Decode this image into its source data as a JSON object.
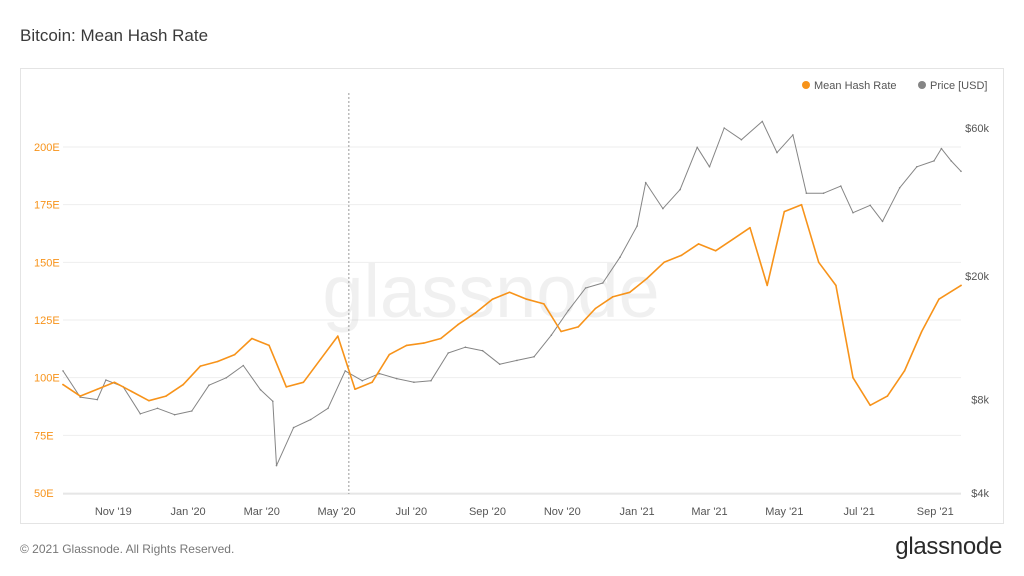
{
  "header": {
    "title": "Bitcoin: Mean Hash Rate"
  },
  "footer": {
    "copyright": "© 2021 Glassnode. All Rights Reserved.",
    "brand": "glassnode"
  },
  "watermark": "glassnode",
  "colors": {
    "hash": "#f7931a",
    "price": "#858585",
    "grid": "#eeeeee",
    "marker": "#9a9a9a"
  },
  "chart_data": {
    "type": "line",
    "title": "Bitcoin: Mean Hash Rate",
    "legend": [
      "Mean Hash Rate",
      "Price [USD]"
    ],
    "legend_position": "top-right",
    "grid": true,
    "x": {
      "start": "2019-09-21",
      "end": "2021-09-22",
      "ticks": [
        {
          "date": "2019-11-01",
          "label": "Nov '19"
        },
        {
          "date": "2020-01-01",
          "label": "Jan '20"
        },
        {
          "date": "2020-03-01",
          "label": "Mar '20"
        },
        {
          "date": "2020-05-01",
          "label": "May '20"
        },
        {
          "date": "2020-07-01",
          "label": "Jul '20"
        },
        {
          "date": "2020-09-01",
          "label": "Sep '20"
        },
        {
          "date": "2020-11-01",
          "label": "Nov '20"
        },
        {
          "date": "2021-01-01",
          "label": "Jan '21"
        },
        {
          "date": "2021-03-01",
          "label": "Mar '21"
        },
        {
          "date": "2021-05-01",
          "label": "May '21"
        },
        {
          "date": "2021-07-01",
          "label": "Jul '21"
        },
        {
          "date": "2021-09-01",
          "label": "Sep '21"
        }
      ],
      "marker_date": "2020-05-11"
    },
    "y_left": {
      "range": [
        50,
        200
      ],
      "ticks": [
        {
          "value": 50,
          "label": "50E"
        },
        {
          "value": 75,
          "label": "75E"
        },
        {
          "value": 100,
          "label": "100E"
        },
        {
          "value": 125,
          "label": "125E"
        },
        {
          "value": 150,
          "label": "150E"
        },
        {
          "value": 175,
          "label": "175E"
        },
        {
          "value": 200,
          "label": "200E"
        }
      ]
    },
    "y_right": {
      "scale": "log",
      "range": [
        4000,
        60000
      ],
      "ticks": [
        {
          "value": 4000,
          "label": "$4k"
        },
        {
          "value": 8000,
          "label": "$8k"
        },
        {
          "value": 20000,
          "label": "$20k"
        },
        {
          "value": 60000,
          "label": "$60k"
        }
      ]
    },
    "series": [
      {
        "name": "Mean Hash Rate",
        "axis": "left",
        "points": [
          [
            "2019-09-21",
            97
          ],
          [
            "2019-10-05",
            92
          ],
          [
            "2019-10-19",
            95
          ],
          [
            "2019-11-02",
            98
          ],
          [
            "2019-11-16",
            94
          ],
          [
            "2019-11-30",
            90
          ],
          [
            "2019-12-14",
            92
          ],
          [
            "2019-12-28",
            97
          ],
          [
            "2020-01-11",
            105
          ],
          [
            "2020-01-25",
            107
          ],
          [
            "2020-02-08",
            110
          ],
          [
            "2020-02-22",
            117
          ],
          [
            "2020-03-07",
            114
          ],
          [
            "2020-03-21",
            96
          ],
          [
            "2020-04-04",
            98
          ],
          [
            "2020-04-18",
            108
          ],
          [
            "2020-05-02",
            118
          ],
          [
            "2020-05-16",
            95
          ],
          [
            "2020-05-30",
            98
          ],
          [
            "2020-06-13",
            110
          ],
          [
            "2020-06-27",
            114
          ],
          [
            "2020-07-11",
            115
          ],
          [
            "2020-07-25",
            117
          ],
          [
            "2020-08-08",
            123
          ],
          [
            "2020-08-22",
            128
          ],
          [
            "2020-09-05",
            134
          ],
          [
            "2020-09-19",
            137
          ],
          [
            "2020-10-03",
            134
          ],
          [
            "2020-10-17",
            132
          ],
          [
            "2020-10-31",
            120
          ],
          [
            "2020-11-14",
            122
          ],
          [
            "2020-11-28",
            130
          ],
          [
            "2020-12-12",
            135
          ],
          [
            "2020-12-26",
            137
          ],
          [
            "2021-01-09",
            143
          ],
          [
            "2021-01-23",
            150
          ],
          [
            "2021-02-06",
            153
          ],
          [
            "2021-02-20",
            158
          ],
          [
            "2021-03-06",
            155
          ],
          [
            "2021-03-20",
            160
          ],
          [
            "2021-04-03",
            165
          ],
          [
            "2021-04-17",
            140
          ],
          [
            "2021-05-01",
            172
          ],
          [
            "2021-05-15",
            175
          ],
          [
            "2021-05-29",
            150
          ],
          [
            "2021-06-12",
            140
          ],
          [
            "2021-06-26",
            100
          ],
          [
            "2021-07-10",
            88
          ],
          [
            "2021-07-24",
            92
          ],
          [
            "2021-08-07",
            103
          ],
          [
            "2021-08-21",
            120
          ],
          [
            "2021-09-04",
            134
          ],
          [
            "2021-09-22",
            140
          ]
        ]
      },
      {
        "name": "Price [USD]",
        "axis": "right",
        "points": [
          [
            "2019-09-21",
            9900
          ],
          [
            "2019-10-05",
            8150
          ],
          [
            "2019-10-19",
            8000
          ],
          [
            "2019-10-26",
            9250
          ],
          [
            "2019-11-09",
            8800
          ],
          [
            "2019-11-23",
            7200
          ],
          [
            "2019-12-07",
            7500
          ],
          [
            "2019-12-21",
            7150
          ],
          [
            "2020-01-04",
            7350
          ],
          [
            "2020-01-18",
            8900
          ],
          [
            "2020-02-01",
            9400
          ],
          [
            "2020-02-15",
            10300
          ],
          [
            "2020-02-29",
            8600
          ],
          [
            "2020-03-10",
            7900
          ],
          [
            "2020-03-13",
            4900
          ],
          [
            "2020-03-27",
            6500
          ],
          [
            "2020-04-10",
            6900
          ],
          [
            "2020-04-24",
            7500
          ],
          [
            "2020-05-08",
            9900
          ],
          [
            "2020-05-22",
            9200
          ],
          [
            "2020-06-05",
            9700
          ],
          [
            "2020-06-19",
            9350
          ],
          [
            "2020-07-03",
            9100
          ],
          [
            "2020-07-17",
            9200
          ],
          [
            "2020-07-31",
            11300
          ],
          [
            "2020-08-14",
            11800
          ],
          [
            "2020-08-28",
            11500
          ],
          [
            "2020-09-11",
            10400
          ],
          [
            "2020-09-25",
            10700
          ],
          [
            "2020-10-09",
            11000
          ],
          [
            "2020-10-23",
            12900
          ],
          [
            "2020-11-06",
            15500
          ],
          [
            "2020-11-20",
            18300
          ],
          [
            "2020-12-04",
            19000
          ],
          [
            "2020-12-18",
            23000
          ],
          [
            "2021-01-01",
            29000
          ],
          [
            "2021-01-08",
            40000
          ],
          [
            "2021-01-22",
            33000
          ],
          [
            "2021-02-05",
            38000
          ],
          [
            "2021-02-19",
            52000
          ],
          [
            "2021-03-01",
            45000
          ],
          [
            "2021-03-13",
            60000
          ],
          [
            "2021-03-27",
            55000
          ],
          [
            "2021-04-13",
            63000
          ],
          [
            "2021-04-25",
            50000
          ],
          [
            "2021-05-08",
            57000
          ],
          [
            "2021-05-19",
            37000
          ],
          [
            "2021-06-02",
            37000
          ],
          [
            "2021-06-16",
            39000
          ],
          [
            "2021-06-26",
            32000
          ],
          [
            "2021-07-10",
            33800
          ],
          [
            "2021-07-20",
            30000
          ],
          [
            "2021-08-03",
            38500
          ],
          [
            "2021-08-17",
            45000
          ],
          [
            "2021-08-31",
            47000
          ],
          [
            "2021-09-06",
            51500
          ],
          [
            "2021-09-14",
            47000
          ],
          [
            "2021-09-22",
            43500
          ]
        ]
      }
    ]
  }
}
